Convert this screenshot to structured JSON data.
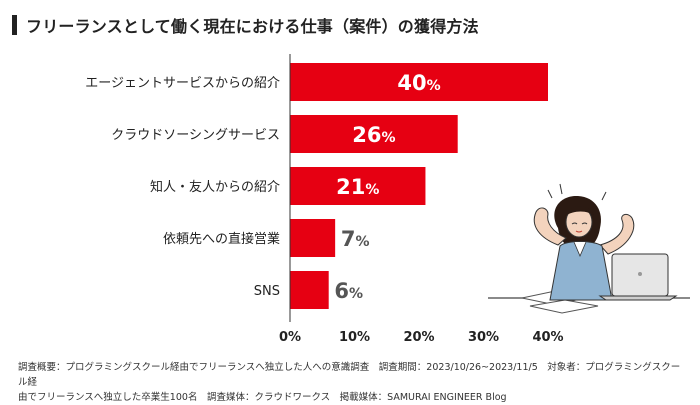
{
  "title": "フリーランスとして働く現在における仕事（案件）の獲得方法",
  "chart_data": {
    "type": "bar",
    "orientation": "horizontal",
    "categories": [
      "エージェントサービスからの紹介",
      "クラウドソーシングサービス",
      "知人・友人からの紹介",
      "依頼先への直接営業",
      "SNS"
    ],
    "values": [
      40,
      26,
      21,
      7,
      6
    ],
    "value_labels": [
      "40%",
      "26%",
      "21%",
      "7%",
      "6%"
    ],
    "xlim": [
      0,
      40
    ],
    "xticks": [
      "0%",
      "10%",
      "20%",
      "30%",
      "40%"
    ],
    "xtick_values": [
      0,
      10,
      20,
      30,
      40
    ],
    "bar_color": "#e60012",
    "label_inside_color": "#ffffff",
    "label_outside_color": "#555555",
    "grid": false
  },
  "footer": {
    "line1": "調査概要：プログラミングスクール経由でフリーランスへ独立した人への意識調査　調査期間：2023/10/26~2023/11/5　対象者：プログラミングスクール経",
    "line2": "由でフリーランスへ独立した卒業生100名　調査媒体：クラウドワークス　掲載媒体：SAMURAI ENGINEER Blog"
  },
  "illustration": "woman-stretching-at-laptop"
}
